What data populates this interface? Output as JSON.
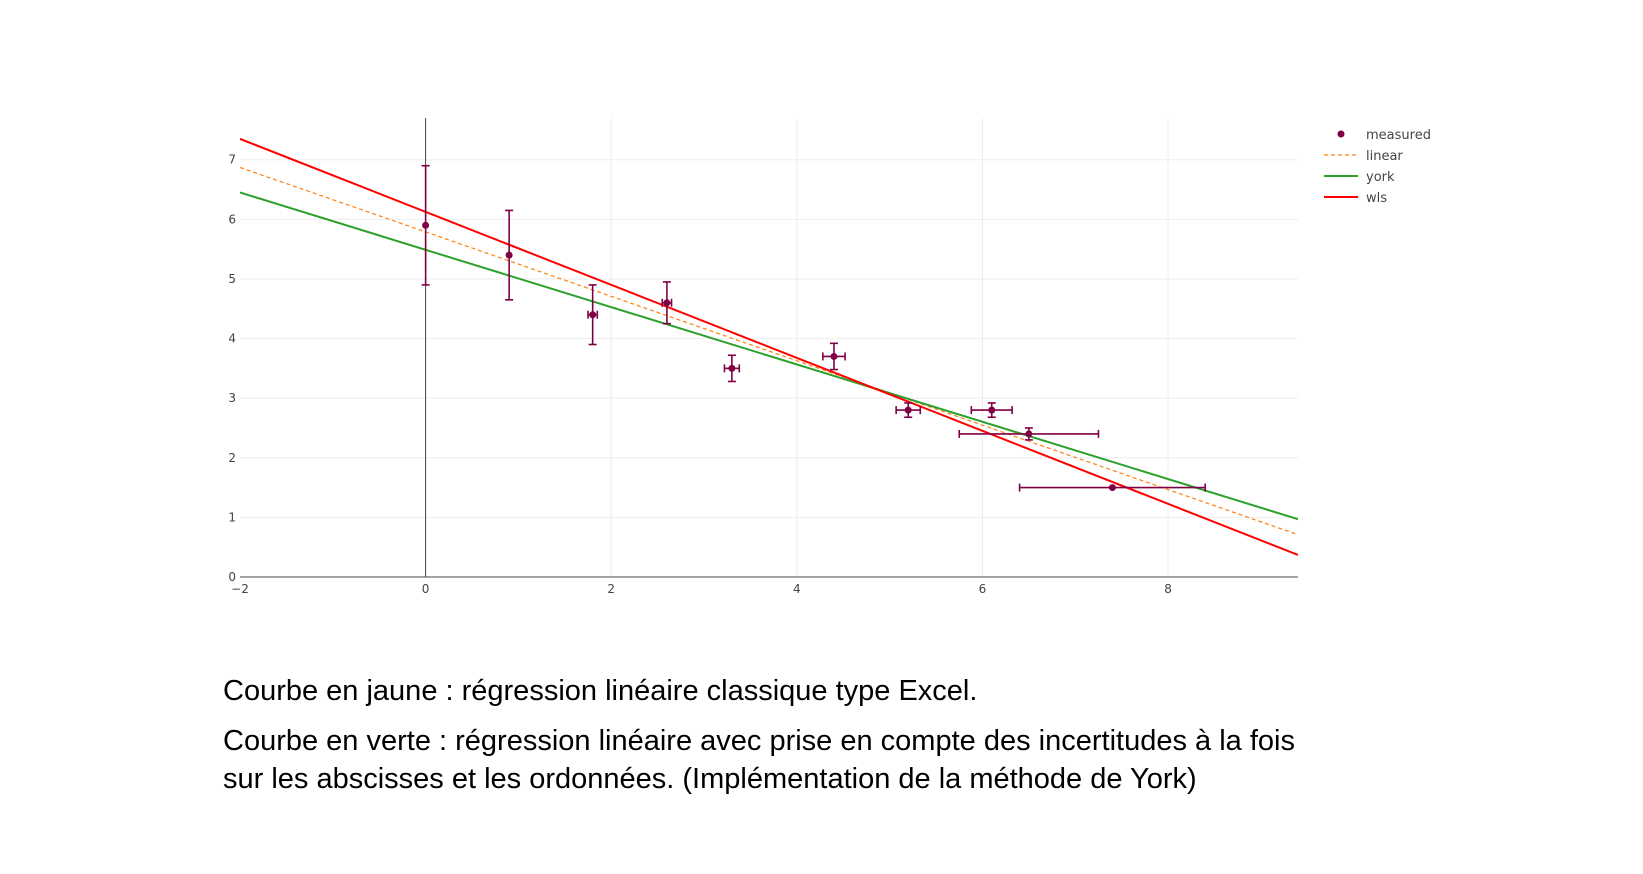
{
  "chart_data": {
    "type": "scatter",
    "title": "",
    "xlabel": "",
    "ylabel": "",
    "xlim": [
      -2,
      9.4
    ],
    "ylim": [
      0,
      7.7
    ],
    "x_ticks": [
      -2,
      0,
      2,
      4,
      6,
      8
    ],
    "x_tick_labels": [
      "−2",
      "0",
      "2",
      "4",
      "6",
      "8"
    ],
    "y_ticks": [
      0,
      1,
      2,
      3,
      4,
      5,
      6,
      7
    ],
    "y_tick_labels": [
      "0",
      "1",
      "2",
      "3",
      "4",
      "5",
      "6",
      "7"
    ],
    "grid": true,
    "legend_position": "top-right",
    "series": [
      {
        "name": "measured",
        "kind": "markers",
        "color": "#800045",
        "x": [
          0,
          0.9,
          1.8,
          2.6,
          3.3,
          4.4,
          5.2,
          6.1,
          6.5,
          7.4
        ],
        "y": [
          5.9,
          5.4,
          4.4,
          4.6,
          3.5,
          3.7,
          2.8,
          2.8,
          2.4,
          1.5
        ],
        "x_error": [
          0,
          0,
          0.05,
          0.05,
          0.08,
          0.12,
          0.13,
          0.22,
          0.75,
          1.0
        ],
        "y_error": [
          1.0,
          0.75,
          0.5,
          0.35,
          0.22,
          0.22,
          0.12,
          0.12,
          0.1,
          0
        ]
      },
      {
        "name": "linear",
        "kind": "line",
        "style": "dashed",
        "color": "#ff7f0e",
        "x": [
          -2,
          9.4
        ],
        "y": [
          6.87,
          0.71
        ]
      },
      {
        "name": "york",
        "kind": "line",
        "style": "solid",
        "color": "#2ca02c",
        "x": [
          -2,
          9.4
        ],
        "y": [
          6.45,
          0.97
        ]
      },
      {
        "name": "wls",
        "kind": "line",
        "style": "solid",
        "color": "#ff0000",
        "x": [
          -2,
          9.4
        ],
        "y": [
          7.35,
          0.37
        ]
      }
    ]
  },
  "captions": {
    "line1": "Courbe en jaune : régression linéaire classique type Excel.",
    "line2": "Courbe en verte : régression linéaire avec prise en compte des incertitudes à la fois",
    "line3": "sur les abscisses et les ordonnées. (Implémentation de la méthode de York)"
  }
}
